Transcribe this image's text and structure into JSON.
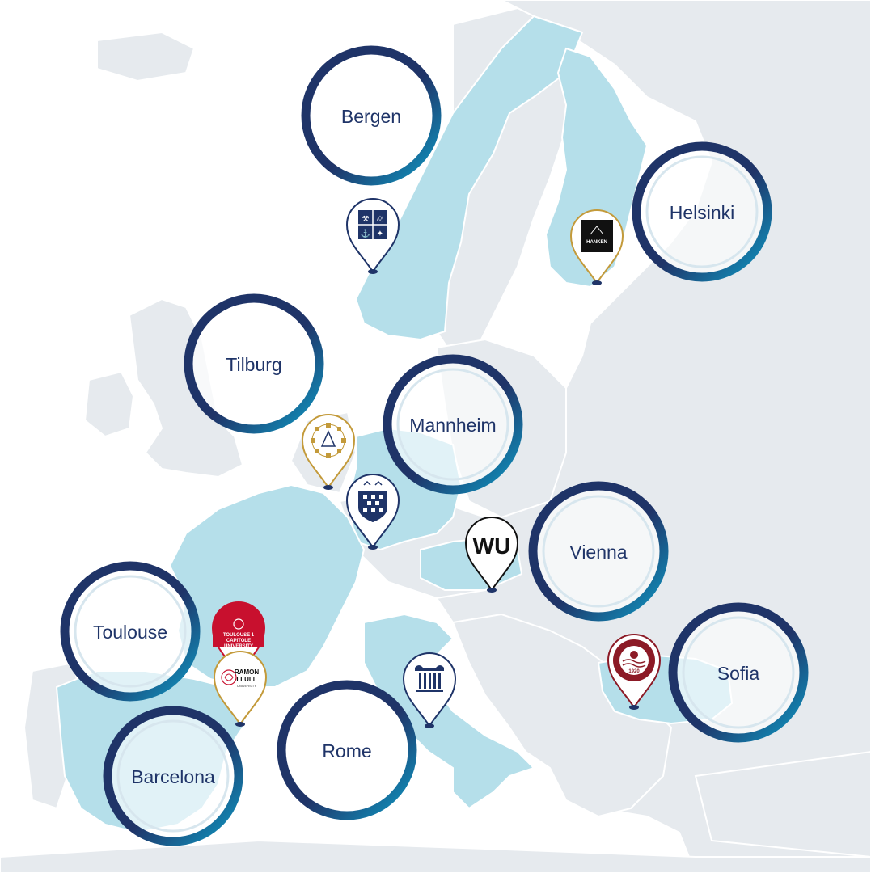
{
  "map": {
    "colors": {
      "ocean": "#ffffff",
      "land": "#e6eaee",
      "highlight_land": "#b5dfea",
      "border": "#ffffff",
      "ring_dark": "#1f3468",
      "ring_light": "#0f9ac4",
      "label": "#1f3468",
      "pin_navy": "#1f3468",
      "pin_gold": "#c39a3a",
      "pin_red": "#8c1a26",
      "pin_black": "#111111"
    },
    "cities": [
      {
        "id": "bergen",
        "label": "Bergen"
      },
      {
        "id": "helsinki",
        "label": "Helsinki"
      },
      {
        "id": "tilburg",
        "label": "Tilburg"
      },
      {
        "id": "mannheim",
        "label": "Mannheim"
      },
      {
        "id": "vienna",
        "label": "Vienna"
      },
      {
        "id": "toulouse",
        "label": "Toulouse"
      },
      {
        "id": "sofia",
        "label": "Sofia"
      },
      {
        "id": "rome",
        "label": "Rome"
      },
      {
        "id": "barcelona",
        "label": "Barcelona"
      }
    ],
    "pins": [
      {
        "id": "bergen-pin",
        "icon": "nhh-crest-icon"
      },
      {
        "id": "helsinki-pin",
        "icon": "hanken-logo-icon",
        "text": "HANKEN"
      },
      {
        "id": "tilburg-pin",
        "icon": "tilburg-seal-icon"
      },
      {
        "id": "mannheim-pin",
        "icon": "mannheim-crest-icon"
      },
      {
        "id": "vienna-pin",
        "icon": "wu-logo-icon",
        "text": "WU"
      },
      {
        "id": "toulouse-pin",
        "icon": "toulouse-logo-icon",
        "lines": [
          "TOULOUSE 1",
          "CAPITOLE",
          "UNIVERSITY"
        ]
      },
      {
        "id": "barcelona-pin",
        "icon": "ramon-llull-logo-icon",
        "lines": [
          "RAMON",
          "LLULL",
          "UNIVERSITY"
        ]
      },
      {
        "id": "rome-pin",
        "icon": "column-icon"
      },
      {
        "id": "sofia-pin",
        "icon": "unwe-seal-icon",
        "text": "1920"
      }
    ]
  }
}
